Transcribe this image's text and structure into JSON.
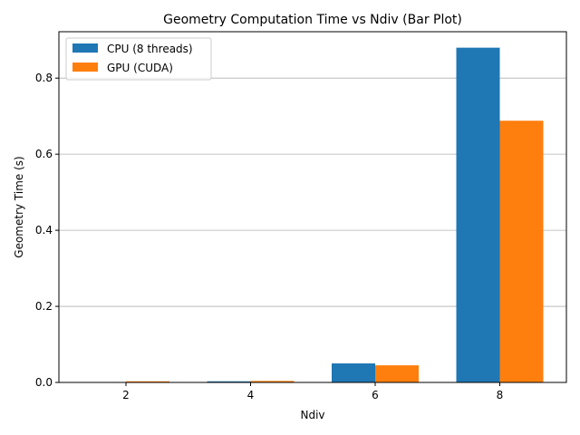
{
  "chart_data": {
    "type": "bar",
    "title": "Geometry Computation Time vs Ndiv (Bar Plot)",
    "xlabel": "Ndiv",
    "ylabel": "Geometry Time (s)",
    "categories": [
      "2",
      "4",
      "6",
      "8"
    ],
    "series": [
      {
        "name": "CPU (8 threads)",
        "color": "#1f77b4",
        "values": [
          0.0004,
          0.003,
          0.05,
          0.88
        ]
      },
      {
        "name": "GPU (CUDA)",
        "color": "#ff7f0e",
        "values": [
          0.003,
          0.004,
          0.045,
          0.688
        ]
      }
    ],
    "ylim": [
      0,
      0.922
    ],
    "yticks": [
      0.0,
      0.2,
      0.4,
      0.6,
      0.8
    ],
    "ytick_labels": [
      "0.0",
      "0.2",
      "0.4",
      "0.6",
      "0.8"
    ],
    "grid": {
      "axis": "y",
      "visible": true
    },
    "legend_position": "top-left"
  }
}
